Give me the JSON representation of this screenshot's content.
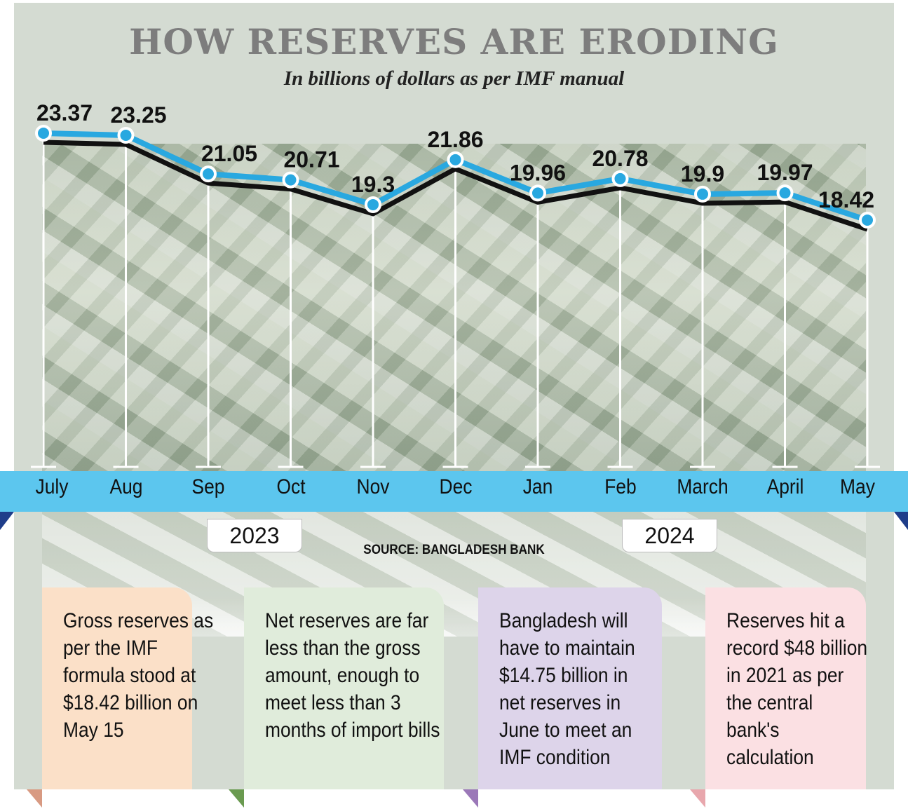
{
  "title": "HOW RESERVES ARE ERODING",
  "subtitle": "In billions of dollars as per IMF manual",
  "source": "SOURCE: BANGLADESH BANK",
  "years": [
    "2023",
    "2024"
  ],
  "chart_data": {
    "type": "line",
    "title": "HOW RESERVES ARE ERODING",
    "subtitle": "In billions of dollars as per IMF manual",
    "categories": [
      "July",
      "Aug",
      "Sep",
      "Oct",
      "Nov",
      "Dec",
      "Jan",
      "Feb",
      "March",
      "April",
      "May"
    ],
    "values": [
      23.37,
      23.25,
      21.05,
      20.71,
      19.3,
      21.86,
      19.96,
      20.78,
      19.9,
      19.97,
      18.42
    ],
    "labels": [
      "23.37",
      "23.25",
      "21.05",
      "20.71",
      "19.3",
      "21.86",
      "19.96",
      "20.78",
      "19.9",
      "19.97",
      "18.42"
    ],
    "line_color": "#29a8e0",
    "shadow_color": "#111111",
    "grid": false,
    "legend": "none"
  },
  "notes": [
    {
      "text": "Gross reserves as per the IMF formula stood at $18.42 billion on May 15",
      "color": "#fbe0c8",
      "fold": "#d89a82"
    },
    {
      "text": "Net reserves are far less than the gross amount, enough to meet less than 3 months of import bills",
      "color": "#e0ecdb",
      "fold": "#6a9a50"
    },
    {
      "text": "Bangladesh will have to maintain $14.75 billion in net reserves in June to meet an IMF condition",
      "color": "#ddd4ea",
      "fold": "#9b78b8"
    },
    {
      "text": "Reserves hit a record $48 billion in 2021 as per the central bank's calculation",
      "color": "#fbe0e3",
      "fold": "#e8a7ad"
    }
  ]
}
